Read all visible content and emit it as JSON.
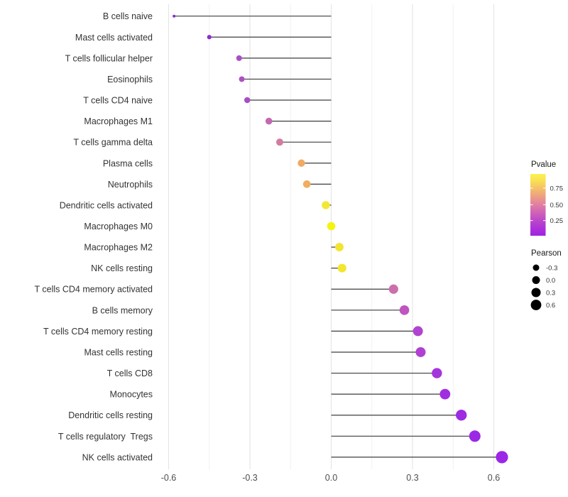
{
  "chart_data": {
    "type": "lollipop",
    "orientation": "horizontal",
    "title": "",
    "xlabel": "",
    "ylabel": "",
    "xlim": [
      -0.64,
      0.69
    ],
    "grid": "vertical-only",
    "x_ticks": [
      {
        "label": "-0.6",
        "value": -0.6
      },
      {
        "label": "-0.3",
        "value": -0.3
      },
      {
        "label": "0.0",
        "value": 0.0
      },
      {
        "label": "0.3",
        "value": 0.3
      },
      {
        "label": "0.6",
        "value": 0.6
      }
    ],
    "minor_grid_values": [
      -0.45,
      -0.15,
      0.15,
      0.45
    ],
    "rows": [
      {
        "label": "B cells naive",
        "pearson": -0.58,
        "pvalue": 0.02,
        "color": "#8A2BD6",
        "radius": 2.0
      },
      {
        "label": "Mast cells activated",
        "pearson": -0.45,
        "pvalue": 0.03,
        "color": "#8C2DD2",
        "radius": 3.1
      },
      {
        "label": "T cells follicular helper",
        "pearson": -0.34,
        "pvalue": 0.19,
        "color": "#AB4EC6",
        "radius": 4.0
      },
      {
        "label": "Eosinophils",
        "pearson": -0.33,
        "pvalue": 0.2,
        "color": "#AD50C5",
        "radius": 4.0
      },
      {
        "label": "T cells CD4 naive",
        "pearson": -0.31,
        "pvalue": 0.18,
        "color": "#AA4CC8",
        "radius": 4.2
      },
      {
        "label": "Macrophages M1",
        "pearson": -0.23,
        "pvalue": 0.27,
        "color": "#C468B2",
        "radius": 4.8
      },
      {
        "label": "T cells gamma delta",
        "pearson": -0.19,
        "pvalue": 0.35,
        "color": "#D47BA2",
        "radius": 5.0
      },
      {
        "label": "Plasma cells",
        "pearson": -0.11,
        "pvalue": 0.6,
        "color": "#F0AA66",
        "radius": 5.2
      },
      {
        "label": "Neutrophils",
        "pearson": -0.09,
        "pvalue": 0.62,
        "color": "#F1AD62",
        "radius": 5.3
      },
      {
        "label": "Dendritic cells activated",
        "pearson": -0.02,
        "pvalue": 0.88,
        "color": "#F2E833",
        "radius": 5.7
      },
      {
        "label": "Macrophages M0",
        "pearson": 0.0,
        "pvalue": 0.97,
        "color": "#F5F312",
        "radius": 5.8
      },
      {
        "label": "Macrophages M2",
        "pearson": 0.03,
        "pvalue": 0.86,
        "color": "#F2E430",
        "radius": 5.9
      },
      {
        "label": "NK cells resting",
        "pearson": 0.04,
        "pvalue": 0.87,
        "color": "#F3E62B",
        "radius": 6.0
      },
      {
        "label": "T cells CD4 memory activated",
        "pearson": 0.23,
        "pvalue": 0.3,
        "color": "#CC70AC",
        "radius": 6.6
      },
      {
        "label": "B cells memory",
        "pearson": 0.27,
        "pvalue": 0.22,
        "color": "#BF55BE",
        "radius": 6.8
      },
      {
        "label": "T cells CD4 memory resting",
        "pearson": 0.32,
        "pvalue": 0.14,
        "color": "#B242D0",
        "radius": 7.0
      },
      {
        "label": "Mast cells resting",
        "pearson": 0.33,
        "pvalue": 0.13,
        "color": "#B040D2",
        "radius": 7.0
      },
      {
        "label": "T cells CD8",
        "pearson": 0.39,
        "pvalue": 0.11,
        "color": "#A434DC",
        "radius": 7.2
      },
      {
        "label": "Monocytes",
        "pearson": 0.42,
        "pvalue": 0.08,
        "color": "#A02EE0",
        "radius": 7.4
      },
      {
        "label": "Dendritic cells resting",
        "pearson": 0.48,
        "pvalue": 0.06,
        "color": "#9D2BE2",
        "radius": 7.7
      },
      {
        "label": "T cells regulatory  Tregs",
        "pearson": 0.53,
        "pvalue": 0.04,
        "color": "#9A28E4",
        "radius": 8.0
      },
      {
        "label": "NK cells activated",
        "pearson": 0.63,
        "pvalue": 0.03,
        "color": "#9C27E6",
        "radius": 8.6
      }
    ],
    "legend_pvalue": {
      "title": "Pvalue",
      "tick_labels": [
        "0.75",
        "0.50",
        "0.25"
      ],
      "tick_values": [
        0.75,
        0.5,
        0.25
      ],
      "range": [
        0.02,
        0.97
      ],
      "gradient_top_to_bottom": [
        {
          "offset": 0.0,
          "color": "#FBF24B"
        },
        {
          "offset": 0.12,
          "color": "#F8DE55"
        },
        {
          "offset": 0.25,
          "color": "#F4BC6C"
        },
        {
          "offset": 0.38,
          "color": "#EC9B85"
        },
        {
          "offset": 0.5,
          "color": "#E07FA2"
        },
        {
          "offset": 0.62,
          "color": "#D163B6"
        },
        {
          "offset": 0.75,
          "color": "#BC48C9"
        },
        {
          "offset": 0.88,
          "color": "#AC32D8"
        },
        {
          "offset": 1.0,
          "color": "#A21FE3"
        }
      ]
    },
    "legend_pearson": {
      "title": "Pearson",
      "items": [
        {
          "label": "-0.3",
          "value": -0.3,
          "radius": 4.5
        },
        {
          "label": "0.0",
          "value": 0.0,
          "radius": 5.5
        },
        {
          "label": "0.3",
          "value": 0.3,
          "radius": 6.5
        },
        {
          "label": "0.6",
          "value": 0.6,
          "radius": 7.4
        }
      ],
      "swatch_color": "#000000"
    },
    "style_colors": {
      "background": "#FFFFFF",
      "major_grid": "#E4E4E4",
      "minor_grid": "#EFEFEF",
      "stem": "#3D3D3D",
      "category_label": "#333333",
      "axis_tick_label": "#4D4D4D",
      "legend_text": "#333333"
    }
  }
}
